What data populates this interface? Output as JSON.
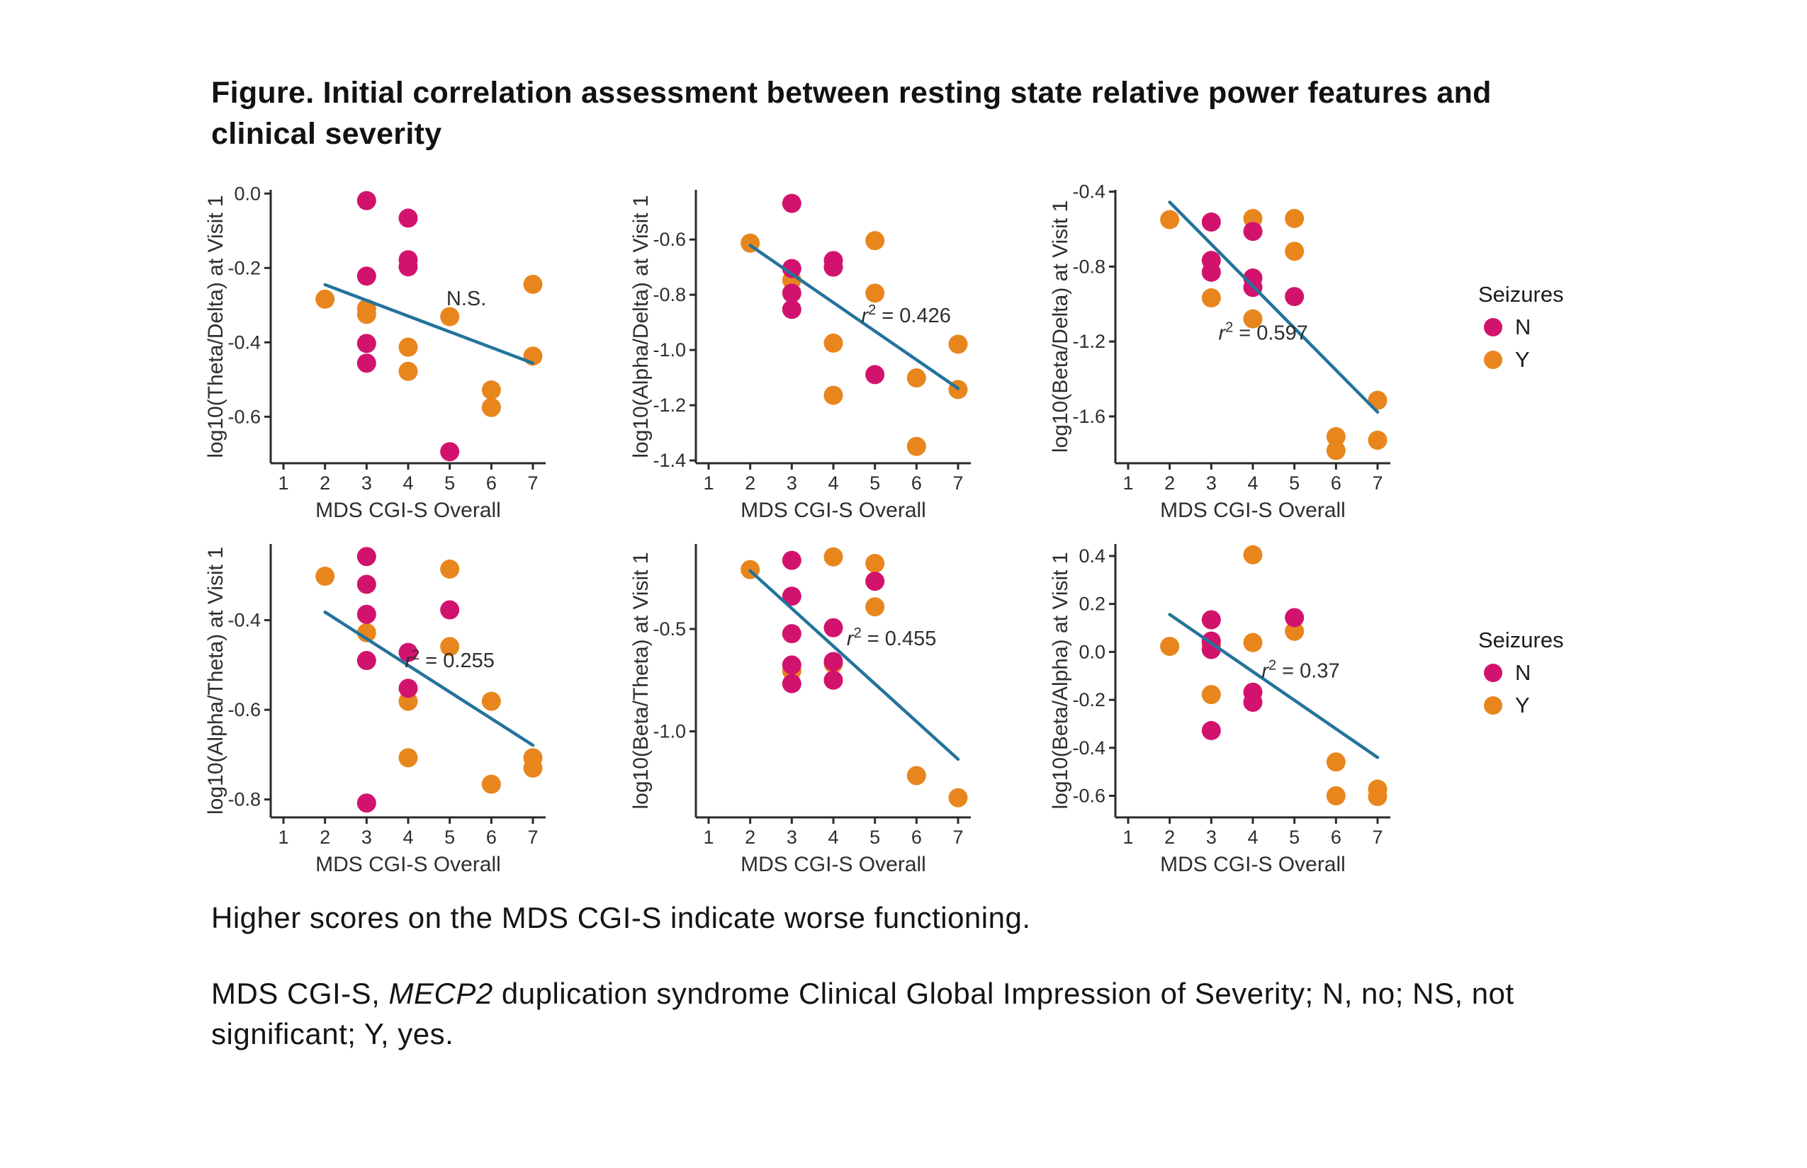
{
  "page": {
    "title_line1": "Figure. Initial correlation assessment between resting state relative power features and",
    "title_line2": "clinical severity"
  },
  "colors": {
    "seizure_no": "#D2136E",
    "seizure_yes": "#E8861D",
    "trend_line": "#23739B",
    "axis": "#2B2B2B"
  },
  "legend": {
    "title": "Seizures",
    "items": [
      {
        "label": "N",
        "color_key": "seizure_no"
      },
      {
        "label": "Y",
        "color_key": "seizure_yes"
      }
    ]
  },
  "notes": {
    "caption": "Higher scores on the MDS CGI-S indicate worse functioning.",
    "abbrev_seg1": "MDS CGI-S, ",
    "abbrev_seg2_italic": "MECP2",
    "abbrev_seg3": " duplication syndrome Clinical Global Impression of Severity; N, no; NS, not",
    "abbrev_line2": "significant; Y, yes."
  },
  "chart_data": [
    {
      "type": "scatter",
      "ylabel": "log10(Theta/Delta) at Visit 1",
      "xlabel": "MDS CGI-S Overall",
      "x_ticks": [
        1,
        2,
        3,
        4,
        5,
        6,
        7
      ],
      "y_ticks": [
        0,
        -0.2,
        -0.4,
        -0.6
      ],
      "y_tick_labels": [
        "0.0",
        "-0.2",
        "-0.4",
        "-0.6"
      ],
      "xlim": [
        0.69,
        7.3
      ],
      "ylim": [
        0.01,
        -0.725
      ],
      "annotation": {
        "x": 5.4,
        "y": -0.3,
        "plain": "N.S."
      },
      "trend": {
        "x1": 2,
        "y1": -0.245,
        "x2": 7,
        "y2": -0.456
      },
      "series": [
        {
          "name": "Y",
          "color_key": "seizure_yes",
          "points": [
            [
              2,
              -0.284
            ],
            [
              3,
              -0.309
            ],
            [
              3,
              -0.325
            ],
            [
              5,
              -0.331
            ],
            [
              7,
              -0.244
            ],
            [
              4,
              -0.413
            ],
            [
              4,
              -0.478
            ],
            [
              7,
              -0.437
            ],
            [
              6,
              -0.528
            ],
            [
              6,
              -0.575
            ]
          ]
        },
        {
          "name": "N",
          "color_key": "seizure_no",
          "points": [
            [
              3,
              -0.019
            ],
            [
              4,
              -0.066
            ],
            [
              4,
              -0.178
            ],
            [
              4,
              -0.197
            ],
            [
              3,
              -0.222
            ],
            [
              3,
              -0.403
            ],
            [
              3,
              -0.456
            ],
            [
              5,
              -0.694
            ]
          ]
        }
      ]
    },
    {
      "type": "scatter",
      "ylabel": "log10(Alpha/Delta) at Visit 1",
      "xlabel": "MDS CGI-S Overall",
      "x_ticks": [
        1,
        2,
        3,
        4,
        5,
        6,
        7
      ],
      "y_ticks": [
        -0.6,
        -0.8,
        -1.0,
        -1.2,
        -1.4
      ],
      "y_tick_labels": [
        "-0.6",
        "-0.8",
        "-1.0",
        "-1.2",
        "-1.4"
      ],
      "xlim": [
        0.69,
        7.3
      ],
      "ylim": [
        -0.42,
        -1.41
      ],
      "annotation": {
        "x": 5.75,
        "y": -0.9,
        "r2": "0.426"
      },
      "trend": {
        "x1": 2,
        "y1": -0.621,
        "x2": 7,
        "y2": -1.139
      },
      "series": [
        {
          "name": "Y",
          "color_key": "seizure_yes",
          "points": [
            [
              2,
              -0.613
            ],
            [
              5,
              -0.604
            ],
            [
              3,
              -0.747
            ],
            [
              5,
              -0.794
            ],
            [
              4,
              -0.975
            ],
            [
              7,
              -0.979
            ],
            [
              6,
              -1.101
            ],
            [
              7,
              -1.143
            ],
            [
              4,
              -1.164
            ],
            [
              6,
              -1.349
            ]
          ]
        },
        {
          "name": "N",
          "color_key": "seizure_no",
          "points": [
            [
              3,
              -0.469
            ],
            [
              4,
              -0.676
            ],
            [
              4,
              -0.7
            ],
            [
              3,
              -0.705
            ],
            [
              3,
              -0.794
            ],
            [
              3,
              -0.853
            ],
            [
              5,
              -1.089
            ]
          ]
        }
      ]
    },
    {
      "type": "scatter",
      "ylabel": "log10(Beta/Delta) at Visit 1",
      "xlabel": "MDS CGI-S Overall",
      "x_ticks": [
        1,
        2,
        3,
        4,
        5,
        6,
        7
      ],
      "y_ticks": [
        -0.4,
        -0.8,
        -1.2,
        -1.6
      ],
      "y_tick_labels": [
        "-0.4",
        "-0.8",
        "-1.2",
        "-1.6"
      ],
      "xlim": [
        0.69,
        7.3
      ],
      "ylim": [
        -0.39,
        -1.85
      ],
      "annotation": {
        "x": 4.25,
        "y": -1.19,
        "r2": "0.597"
      },
      "trend": {
        "x1": 2,
        "y1": -0.456,
        "x2": 7,
        "y2": -1.577
      },
      "series": [
        {
          "name": "Y",
          "color_key": "seizure_yes",
          "points": [
            [
              2,
              -0.549
            ],
            [
              4,
              -0.543
            ],
            [
              5,
              -0.543
            ],
            [
              5,
              -0.718
            ],
            [
              3,
              -0.967
            ],
            [
              4,
              -1.079
            ],
            [
              7,
              -1.514
            ],
            [
              6,
              -1.708
            ],
            [
              6,
              -1.782
            ],
            [
              7,
              -1.727
            ]
          ]
        },
        {
          "name": "N",
          "color_key": "seizure_no",
          "points": [
            [
              3,
              -0.562
            ],
            [
              4,
              -0.612
            ],
            [
              3,
              -0.767
            ],
            [
              3,
              -0.83
            ],
            [
              4,
              -0.861
            ],
            [
              4,
              -0.911
            ],
            [
              5,
              -0.96
            ]
          ]
        }
      ]
    },
    {
      "type": "scatter",
      "ylabel": "log10(Alpha/Theta) at Visit 1",
      "xlabel": "MDS CGI-S Overall",
      "x_ticks": [
        1,
        2,
        3,
        4,
        5,
        6,
        7
      ],
      "y_ticks": [
        -0.4,
        -0.6,
        -0.8
      ],
      "y_tick_labels": [
        "-0.4",
        "-0.6",
        "-0.8"
      ],
      "xlim": [
        0.69,
        7.3
      ],
      "ylim": [
        -0.23,
        -0.84
      ],
      "annotation": {
        "x": 5.0,
        "y": -0.505,
        "r2": "0.255"
      },
      "trend": {
        "x1": 2,
        "y1": -0.382,
        "x2": 7,
        "y2": -0.679
      },
      "series": [
        {
          "name": "Y",
          "color_key": "seizure_yes",
          "points": [
            [
              2,
              -0.302
            ],
            [
              5,
              -0.286
            ],
            [
              3,
              -0.428
            ],
            [
              5,
              -0.459
            ],
            [
              4,
              -0.581
            ],
            [
              6,
              -0.581
            ],
            [
              4,
              -0.707
            ],
            [
              7,
              -0.707
            ],
            [
              7,
              -0.73
            ],
            [
              6,
              -0.766
            ]
          ]
        },
        {
          "name": "N",
          "color_key": "seizure_no",
          "points": [
            [
              3,
              -0.258
            ],
            [
              3,
              -0.32
            ],
            [
              3,
              -0.387
            ],
            [
              5,
              -0.377
            ],
            [
              4,
              -0.472
            ],
            [
              3,
              -0.49
            ],
            [
              4,
              -0.552
            ],
            [
              3,
              -0.808
            ]
          ]
        }
      ]
    },
    {
      "type": "scatter",
      "ylabel": "log10(Beta/Theta) at Visit 1",
      "xlabel": "MDS CGI-S Overall",
      "x_ticks": [
        1,
        2,
        3,
        4,
        5,
        6,
        7
      ],
      "y_ticks": [
        -0.5,
        -1.0
      ],
      "y_tick_labels": [
        "-0.5",
        "-1.0"
      ],
      "xlim": [
        0.69,
        7.3
      ],
      "ylim": [
        -0.085,
        -1.42
      ],
      "annotation": {
        "x": 5.4,
        "y": -0.58,
        "r2": "0.455"
      },
      "trend": {
        "x1": 2,
        "y1": -0.216,
        "x2": 7,
        "y2": -1.136
      },
      "series": [
        {
          "name": "Y",
          "color_key": "seizure_yes",
          "points": [
            [
              4,
              -0.148
            ],
            [
              5,
              -0.18
            ],
            [
              2,
              -0.21
            ],
            [
              5,
              -0.392
            ],
            [
              4,
              -0.67
            ],
            [
              3,
              -0.705
            ],
            [
              6,
              -1.216
            ],
            [
              7,
              -1.324
            ]
          ]
        },
        {
          "name": "N",
          "color_key": "seizure_no",
          "points": [
            [
              3,
              -0.165
            ],
            [
              5,
              -0.267
            ],
            [
              3,
              -0.34
            ],
            [
              4,
              -0.494
            ],
            [
              3,
              -0.523
            ],
            [
              4,
              -0.659
            ],
            [
              3,
              -0.676
            ],
            [
              4,
              -0.75
            ],
            [
              3,
              -0.767
            ]
          ]
        }
      ]
    },
    {
      "type": "scatter",
      "ylabel": "log10(Beta/Alpha) at Visit 1",
      "xlabel": "MDS CGI-S Overall",
      "x_ticks": [
        1,
        2,
        3,
        4,
        5,
        6,
        7
      ],
      "y_ticks": [
        0.4,
        0.2,
        0,
        -0.2,
        -0.4,
        -0.6
      ],
      "y_tick_labels": [
        "0.4",
        "0.2",
        "0.0",
        "-0.2",
        "-0.4",
        "-0.6"
      ],
      "xlim": [
        0.69,
        7.3
      ],
      "ylim": [
        0.45,
        -0.69
      ],
      "annotation": {
        "x": 5.15,
        "y": -0.107,
        "r2": "0.37"
      },
      "trend": {
        "x1": 2,
        "y1": 0.156,
        "x2": 7,
        "y2": -0.44
      },
      "series": [
        {
          "name": "Y",
          "color_key": "seizure_yes",
          "points": [
            [
              4,
              0.405
            ],
            [
              5,
              0.086
            ],
            [
              2,
              0.023
            ],
            [
              3,
              0.03
            ],
            [
              4,
              0.039
            ],
            [
              3,
              -0.178
            ],
            [
              6,
              -0.459
            ],
            [
              6,
              -0.6
            ],
            [
              7,
              -0.572
            ],
            [
              7,
              -0.603
            ]
          ]
        },
        {
          "name": "N",
          "color_key": "seizure_no",
          "points": [
            [
              5,
              0.143
            ],
            [
              3,
              0.134
            ],
            [
              3,
              0.045
            ],
            [
              3,
              0.01
            ],
            [
              4,
              -0.168
            ],
            [
              4,
              -0.21
            ],
            [
              3,
              -0.328
            ]
          ]
        }
      ]
    }
  ]
}
